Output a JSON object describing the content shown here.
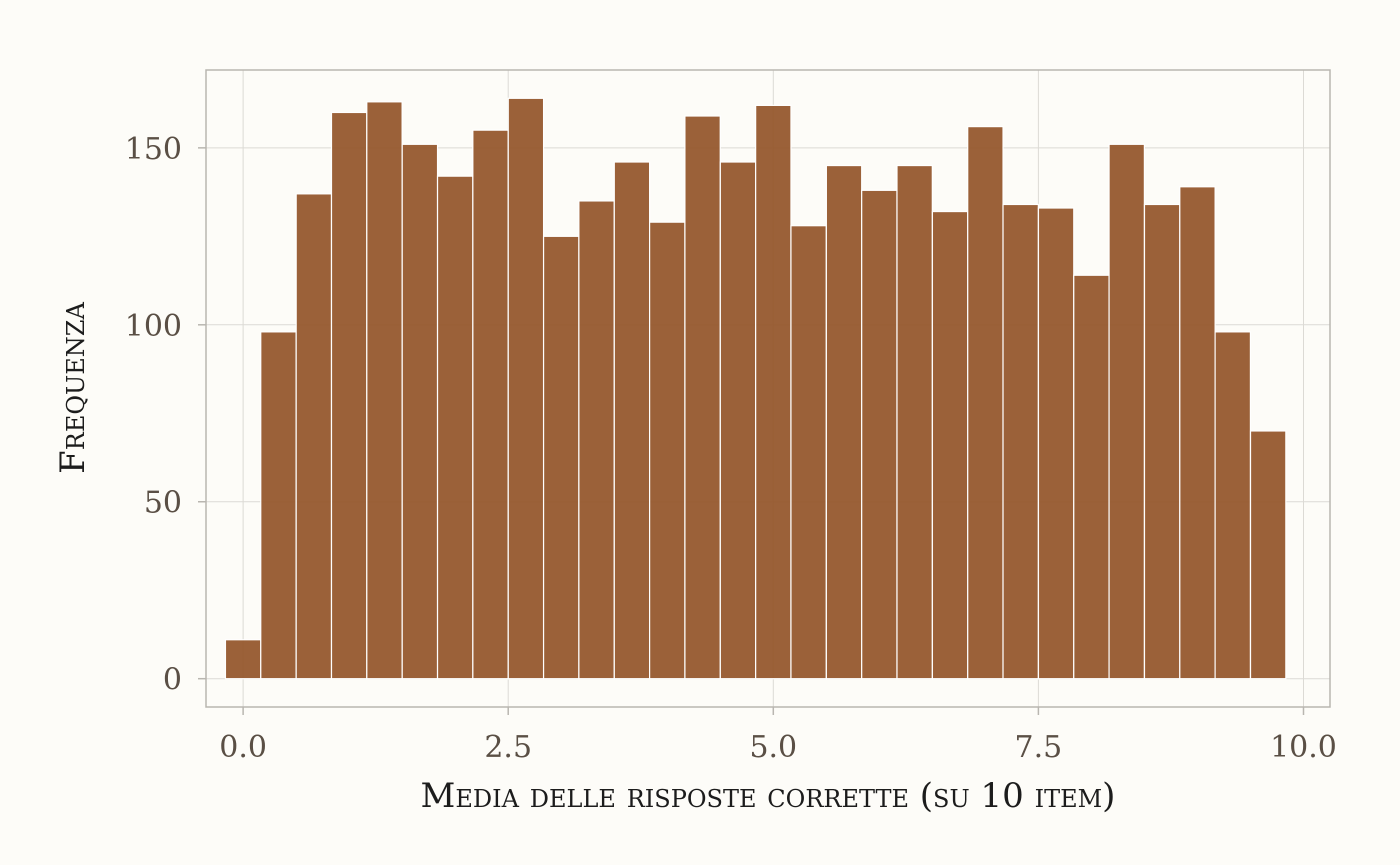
{
  "chart_data": {
    "type": "bar",
    "xlabel": "Media delle risposte corrette (su 10 item)",
    "ylabel": "Frequenza",
    "xlim": [
      -0.35,
      10.25
    ],
    "ylim": [
      -8,
      172
    ],
    "x_ticks": [
      0.0,
      2.5,
      5.0,
      7.5,
      10.0
    ],
    "x_tick_labels": [
      "0.0",
      "2.5",
      "5.0",
      "7.5",
      "10.0"
    ],
    "y_ticks": [
      0,
      50,
      100,
      150
    ],
    "y_tick_labels": [
      "0",
      "50",
      "100",
      "150"
    ],
    "grid": true,
    "bin_width": 0.333,
    "bins": [
      {
        "x": 0.0,
        "value": 11
      },
      {
        "x": 0.333,
        "value": 98
      },
      {
        "x": 0.667,
        "value": 137
      },
      {
        "x": 1.0,
        "value": 160
      },
      {
        "x": 1.333,
        "value": 163
      },
      {
        "x": 1.667,
        "value": 151
      },
      {
        "x": 2.0,
        "value": 142
      },
      {
        "x": 2.333,
        "value": 155
      },
      {
        "x": 2.667,
        "value": 164
      },
      {
        "x": 3.0,
        "value": 125
      },
      {
        "x": 3.333,
        "value": 135
      },
      {
        "x": 3.667,
        "value": 146
      },
      {
        "x": 4.0,
        "value": 129
      },
      {
        "x": 4.333,
        "value": 159
      },
      {
        "x": 4.667,
        "value": 146
      },
      {
        "x": 5.0,
        "value": 162
      },
      {
        "x": 5.333,
        "value": 128
      },
      {
        "x": 5.667,
        "value": 145
      },
      {
        "x": 6.0,
        "value": 138
      },
      {
        "x": 6.333,
        "value": 145
      },
      {
        "x": 6.667,
        "value": 132
      },
      {
        "x": 7.0,
        "value": 156
      },
      {
        "x": 7.333,
        "value": 134
      },
      {
        "x": 7.667,
        "value": 133
      },
      {
        "x": 8.0,
        "value": 114
      },
      {
        "x": 8.333,
        "value": 151
      },
      {
        "x": 8.667,
        "value": 134
      },
      {
        "x": 9.0,
        "value": 139
      },
      {
        "x": 9.333,
        "value": 98
      },
      {
        "x": 9.667,
        "value": 70
      }
    ],
    "colors": {
      "bar": "#93552a",
      "background": "#fdfcf8"
    }
  }
}
